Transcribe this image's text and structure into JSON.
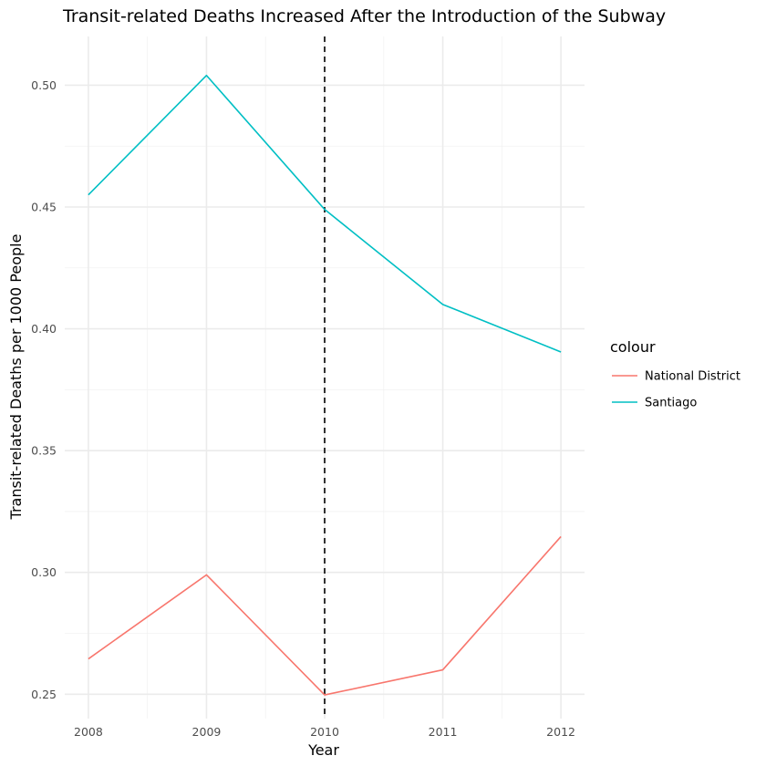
{
  "chart_data": {
    "type": "line",
    "title": "Transit-related Deaths Increased After the Introduction of the Subway",
    "xlabel": "Year",
    "ylabel": "Transit-related Deaths per 1000 People",
    "x": [
      2008,
      2009,
      2010,
      2011,
      2012
    ],
    "x_ticks": [
      "2008",
      "2009",
      "2010",
      "2011",
      "2012"
    ],
    "y_ticks": [
      "0.25",
      "0.30",
      "0.35",
      "0.40",
      "0.45",
      "0.50"
    ],
    "xlim": [
      2008,
      2012
    ],
    "ylim": [
      0.24,
      0.52
    ],
    "grid": true,
    "legend_title": "colour",
    "legend_position": "right",
    "vline": {
      "x": 2010,
      "style": "dashed",
      "color": "#000000"
    },
    "series": [
      {
        "name": "National District",
        "color": "#F8766D",
        "values": [
          0.2645,
          0.299,
          0.2497,
          0.26,
          0.3147
        ]
      },
      {
        "name": "Santiago",
        "color": "#00BFC4",
        "values": [
          0.455,
          0.504,
          0.449,
          0.41,
          0.3905
        ]
      }
    ]
  }
}
